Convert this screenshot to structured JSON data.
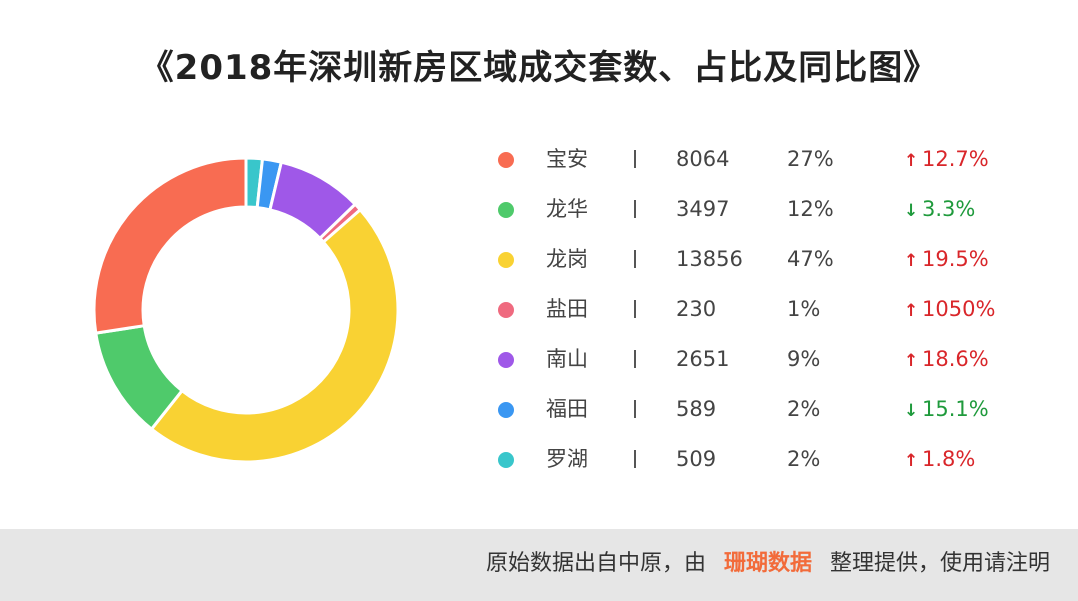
{
  "title": "《2018年深圳新房区域成交套数、占比及同比图》",
  "chart_data": {
    "type": "pie",
    "title": "《2018年深圳新房区域成交套数、占比及同比图》",
    "categories": [
      "宝安",
      "龙华",
      "龙岗",
      "盐田",
      "南山",
      "福田",
      "罗湖"
    ],
    "values": [
      8064,
      3497,
      13856,
      230,
      2651,
      589,
      509
    ],
    "shares": [
      "27%",
      "12%",
      "47%",
      "1%",
      "9%",
      "2%",
      "2%"
    ],
    "yoy": [
      "12.7%",
      "3.3%",
      "19.5%",
      "1050%",
      "18.6%",
      "15.1%",
      "1.8%"
    ],
    "yoy_direction": [
      "up",
      "down",
      "up",
      "up",
      "up",
      "down",
      "up"
    ],
    "colors": [
      "#f86c52",
      "#4fca6b",
      "#f9d233",
      "#ef6a7f",
      "#9f58e8",
      "#3a97f2",
      "#39c6cb"
    ],
    "donut": true,
    "legend": "right"
  },
  "legend": {
    "rows": [
      {
        "name": "宝安",
        "count": "8064",
        "share": "27%",
        "yoy": "12.7%",
        "arrow": "↑"
      },
      {
        "name": "龙华",
        "count": "3497",
        "share": "12%",
        "yoy": "3.3%",
        "arrow": "↓"
      },
      {
        "name": "龙岗",
        "count": "13856",
        "share": "47%",
        "yoy": "19.5%",
        "arrow": "↑"
      },
      {
        "name": "盐田",
        "count": "230",
        "share": "1%",
        "yoy": "1050%",
        "arrow": "↑"
      },
      {
        "name": "南山",
        "count": "2651",
        "share": "9%",
        "yoy": "18.6%",
        "arrow": "↑"
      },
      {
        "name": "福田",
        "count": "589",
        "share": "2%",
        "yoy": "15.1%",
        "arrow": "↓"
      },
      {
        "name": "罗湖",
        "count": "509",
        "share": "2%",
        "yoy": "1.8%",
        "arrow": "↑"
      }
    ]
  },
  "footer": {
    "before": "原始数据出自中原，由",
    "brand": "珊瑚数据",
    "after": "整理提供，使用请注明"
  }
}
